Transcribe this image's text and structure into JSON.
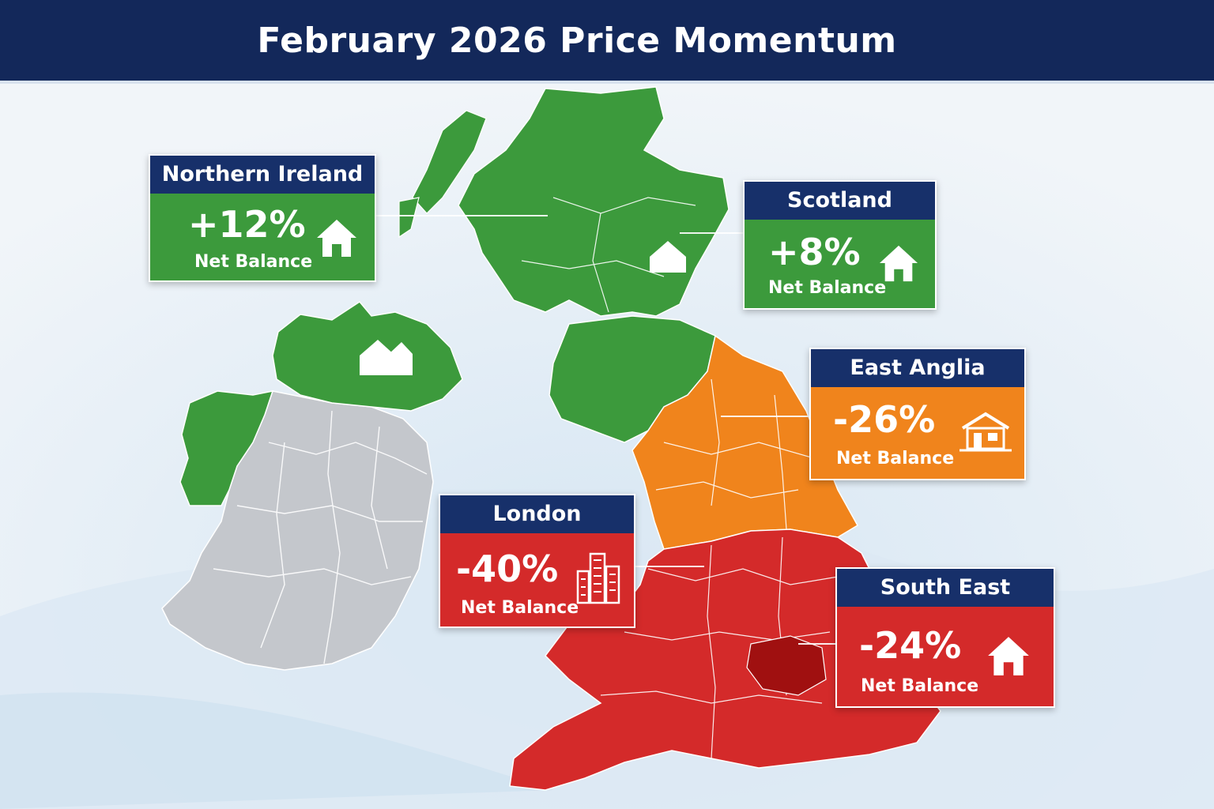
{
  "title": "February 2026 Price Momentum",
  "colors": {
    "header": "#13285a",
    "label_head": "#17306a",
    "positive": "#3c9a3c",
    "negative_mid": "#f0841c",
    "negative_strong": "#d42a2a",
    "no_data": "#c4c7cc",
    "sea": "#cfe1f0"
  },
  "regions": [
    {
      "id": "northern-ireland",
      "name": "Northern Ireland",
      "value": "+12%",
      "measure": "Net Balance",
      "icon": "house-icon"
    },
    {
      "id": "scotland",
      "name": "Scotland",
      "value": "+8%",
      "measure": "Net Balance",
      "icon": "house-icon"
    },
    {
      "id": "east-anglia",
      "name": "East Anglia",
      "value": "-26%",
      "measure": "Net Balance",
      "icon": "house-icon"
    },
    {
      "id": "london",
      "name": "London",
      "value": "-40%",
      "measure": "Net Balance",
      "icon": "city-buildings-icon"
    },
    {
      "id": "south-east",
      "name": "South East",
      "value": "-24%",
      "measure": "Net Balance",
      "icon": "house-icon"
    }
  ]
}
